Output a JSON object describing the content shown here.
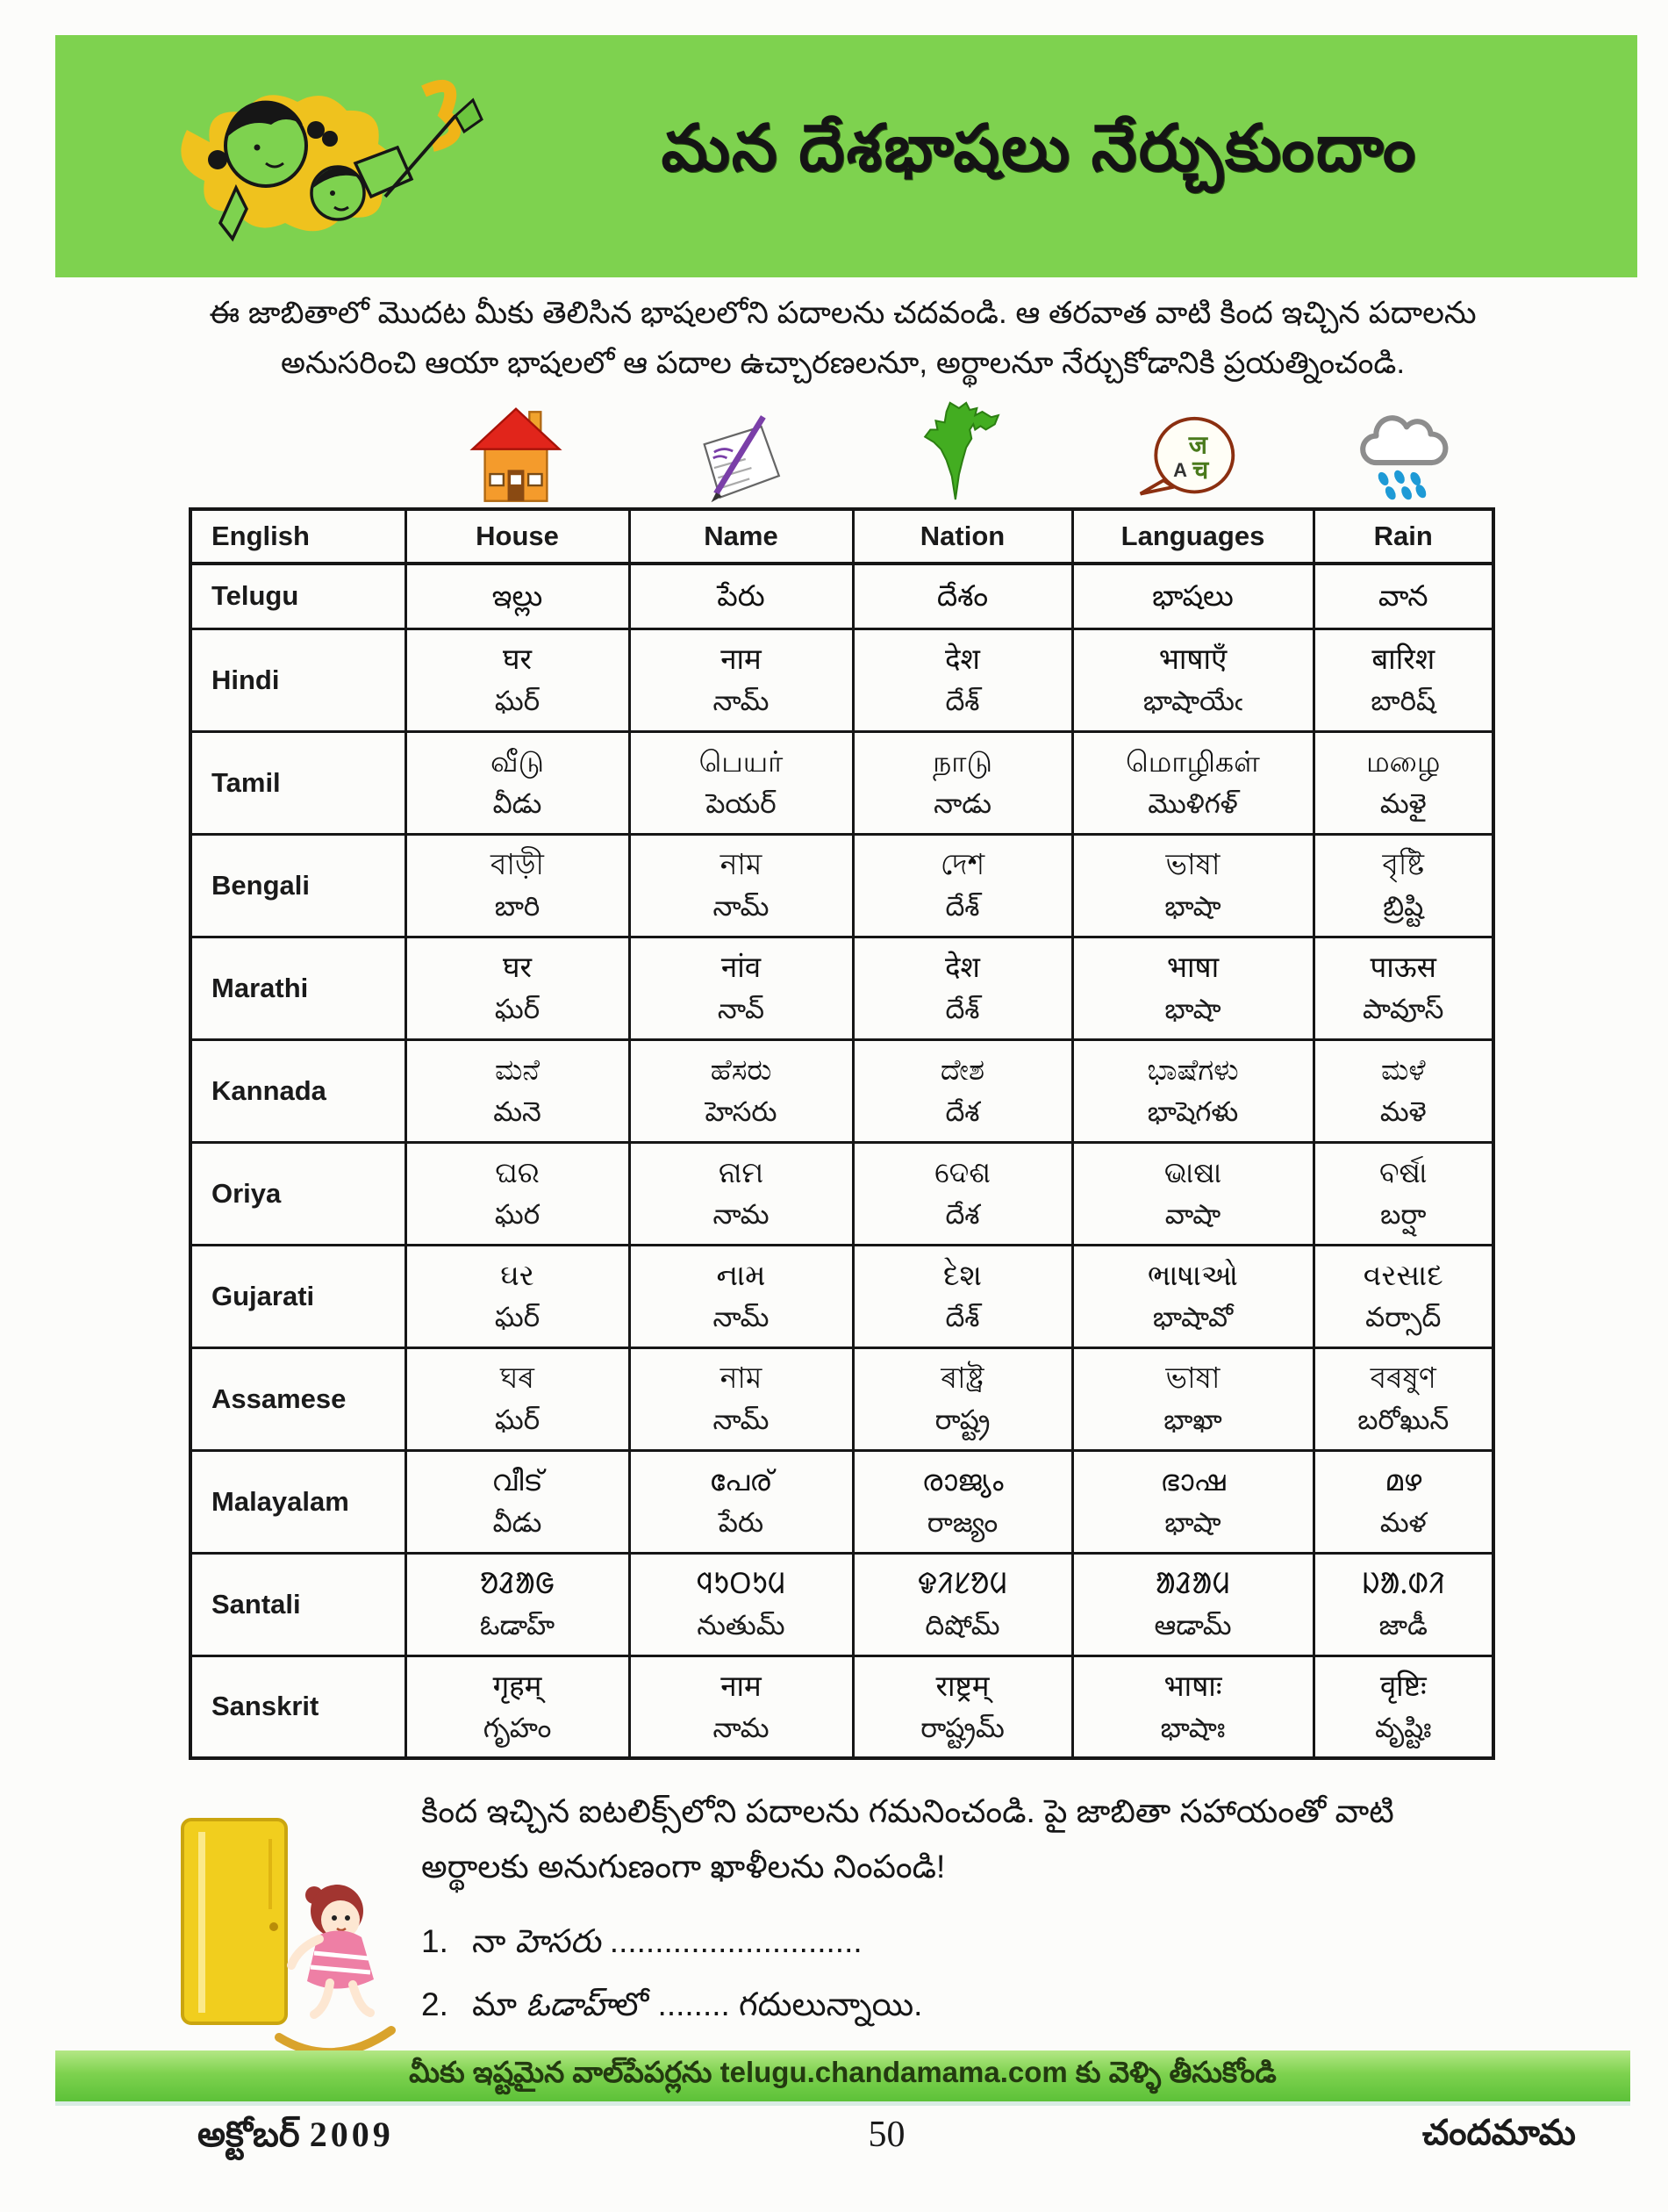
{
  "banner": {
    "title": "మన దేశభాషలు నేర్చుకుందాం"
  },
  "intro": {
    "line1": "ఈ జాబితాలో మొదట మీకు తెలిసిన భాషలలోని పదాలను చదవండి. ఆ తరవాత వాటి కింద ఇచ్చిన పదాలను",
    "line2": "అనుసరించి ఆయా భాషలలో ఆ పదాల ఉచ్చారణలనూ, అర్థాలనూ నేర్చుకోడానికి ప్రయత్నించండి."
  },
  "table": {
    "header": [
      "English",
      "House",
      "Name",
      "Nation",
      "Languages",
      "Rain"
    ],
    "icons": [
      "house-icon",
      "name-pen-icon",
      "india-map-icon",
      "speech-bubble-icon",
      "rain-cloud-icon"
    ],
    "rows": [
      {
        "language": "Telugu",
        "cells": [
          {
            "word": "ఇల్లు",
            "pron": ""
          },
          {
            "word": "పేరు",
            "pron": ""
          },
          {
            "word": "దేశం",
            "pron": ""
          },
          {
            "word": "భాషలు",
            "pron": ""
          },
          {
            "word": "వాన",
            "pron": ""
          }
        ]
      },
      {
        "language": "Hindi",
        "cells": [
          {
            "word": "घर",
            "pron": "ఘర్"
          },
          {
            "word": "नाम",
            "pron": "నామ్"
          },
          {
            "word": "देश",
            "pron": "దేశ్"
          },
          {
            "word": "भाषाएँ",
            "pron": "భాషాయేఁ"
          },
          {
            "word": "बारिश",
            "pron": "బారిష్"
          }
        ]
      },
      {
        "language": "Tamil",
        "cells": [
          {
            "word": "வீடு",
            "pron": "వీడు"
          },
          {
            "word": "பெயர்",
            "pron": "పెయర్"
          },
          {
            "word": "நாடு",
            "pron": "నాడు"
          },
          {
            "word": "மொழிகள்",
            "pron": "మొళిగళ్"
          },
          {
            "word": "மழை",
            "pron": "మళై"
          }
        ]
      },
      {
        "language": "Bengali",
        "cells": [
          {
            "word": "বাড়ী",
            "pron": "బారి"
          },
          {
            "word": "নাম",
            "pron": "నామ్"
          },
          {
            "word": "দেশ",
            "pron": "దేశ్"
          },
          {
            "word": "ভাষা",
            "pron": "భాషా"
          },
          {
            "word": "বৃষ্টি",
            "pron": "బ్రిష్టి"
          }
        ]
      },
      {
        "language": "Marathi",
        "cells": [
          {
            "word": "घर",
            "pron": "ఘర్"
          },
          {
            "word": "नांव",
            "pron": "నావ్"
          },
          {
            "word": "देश",
            "pron": "దేశ్"
          },
          {
            "word": "भाषा",
            "pron": "భాషా"
          },
          {
            "word": "पाऊस",
            "pron": "పావూస్"
          }
        ]
      },
      {
        "language": "Kannada",
        "cells": [
          {
            "word": "ಮನೆ",
            "pron": "మనె"
          },
          {
            "word": "ಹೆಸರು",
            "pron": "హెసరు"
          },
          {
            "word": "ದೇಶ",
            "pron": "దేశ"
          },
          {
            "word": "ಭಾಷೆಗಳು",
            "pron": "భాషెగళు"
          },
          {
            "word": "ಮಳೆ",
            "pron": "మళె"
          }
        ]
      },
      {
        "language": "Oriya",
        "cells": [
          {
            "word": "ଘର",
            "pron": "ఘర"
          },
          {
            "word": "ନାମ",
            "pron": "నామ"
          },
          {
            "word": "ଦେଶ",
            "pron": "దేశ"
          },
          {
            "word": "ଭାଷା",
            "pron": "వాషా"
          },
          {
            "word": "ବର୍ଷା",
            "pron": "బర్షా"
          }
        ]
      },
      {
        "language": "Gujarati",
        "cells": [
          {
            "word": "ઘર",
            "pron": "ఘర్"
          },
          {
            "word": "નામ",
            "pron": "నామ్"
          },
          {
            "word": "દેશ",
            "pron": "దేశ్"
          },
          {
            "word": "ભાષાઓ",
            "pron": "భాషావో"
          },
          {
            "word": "વરસાદ",
            "pron": "వర్సాద్"
          }
        ]
      },
      {
        "language": "Assamese",
        "cells": [
          {
            "word": "ঘৰ",
            "pron": "ఘర్"
          },
          {
            "word": "নাম",
            "pron": "నామ్"
          },
          {
            "word": "ৰাষ্ট্ৰ",
            "pron": "రాష్ట్ర"
          },
          {
            "word": "ভাষা",
            "pron": "భాఖా"
          },
          {
            "word": "বৰষুণ",
            "pron": "బరోఖున్"
          }
        ]
      },
      {
        "language": "Malayalam",
        "cells": [
          {
            "word": "വീട്",
            "pron": "వీడు"
          },
          {
            "word": "പേര്",
            "pron": "పేరు"
          },
          {
            "word": "രാജ്യം",
            "pron": "రాజ్యం"
          },
          {
            "word": "ഭാഷ",
            "pron": "భాషా"
          },
          {
            "word": "മഴ",
            "pron": "మళ"
          }
        ]
      },
      {
        "language": "Santali",
        "cells": [
          {
            "word": "ᱚᱲᱟᱜ",
            "pron": "ఓడాహ్"
          },
          {
            "word": "ᱧᱩᱛᱩᱢ",
            "pron": "నుతుమ్"
          },
          {
            "word": "ᱫᱤᱥᱚᱢ",
            "pron": "దిషోమ్"
          },
          {
            "word": "ᱟᱲᱟᱢ",
            "pron": "ఆడామ్"
          },
          {
            "word": "ᱡᱟᱹᱰᱤ",
            "pron": "జాడీ"
          }
        ]
      },
      {
        "language": "Sanskrit",
        "cells": [
          {
            "word": "गृहम्",
            "pron": "గృహం"
          },
          {
            "word": "नाम",
            "pron": "నామ"
          },
          {
            "word": "राष्ट्रम्",
            "pron": "రాష్ట్రమ్"
          },
          {
            "word": "भाषाः",
            "pron": "భాషాః"
          },
          {
            "word": "वृष्टिः",
            "pron": "వృష్టిః"
          }
        ]
      }
    ]
  },
  "exercise": {
    "instruction_line1": "కింద ఇచ్చిన ఐటలిక్స్‌లోని పదాలను గమనించండి. పై జాబితా సహాయంతో వాటి",
    "instruction_line2": "అర్థాలకు అనుగుణంగా ఖాళీలను నింపండి!",
    "items": [
      {
        "num": "1.",
        "pre": "నా ",
        "italic": "హెసరు",
        "post": " ............................"
      },
      {
        "num": "2.",
        "pre": "మా ",
        "italic": "ఓడాహ్",
        "post": "లో ........ గదులున్నాయి."
      }
    ]
  },
  "footer": {
    "strip": "మీకు ఇష్టమైన వాల్‌పేపర్లను telugu.chandamama.com కు వెళ్ళి తీసుకోండి",
    "issue_month": "అక్టోబర్",
    "issue_year": "2009",
    "page_number": "50",
    "magazine": "చందమామ"
  },
  "colors": {
    "banner_green": "#7ed24f",
    "splash_yellow": "#f6c11b",
    "table_border": "#161616",
    "house_roof_red": "#e1251b",
    "house_wall_orange": "#f49b2c",
    "pen_purple": "#7a3fa8",
    "map_green": "#43ad21",
    "bubble_maroon": "#8b2f10",
    "rain_blue": "#1e9ad6",
    "cupboard_yellow": "#f1ce1e",
    "dress_pink": "#ee7fa5"
  }
}
